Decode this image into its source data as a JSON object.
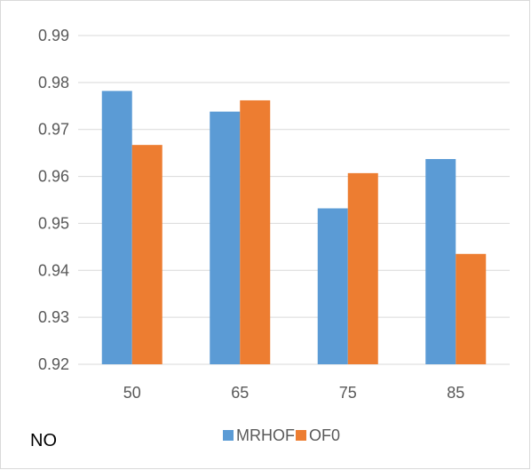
{
  "chart_data": {
    "type": "bar",
    "categories": [
      "50",
      "65",
      "75",
      "85"
    ],
    "series": [
      {
        "name": "MRHOF",
        "values": [
          0.9782,
          0.9738,
          0.9532,
          0.9637
        ],
        "color": "#5b9bd5"
      },
      {
        "name": "OF0",
        "values": [
          0.9667,
          0.9762,
          0.9607,
          0.9435
        ],
        "color": "#ed7d31"
      }
    ],
    "ylim": [
      0.92,
      0.99
    ],
    "yticks": [
      "0.92",
      "0.93",
      "0.94",
      "0.95",
      "0.96",
      "0.97",
      "0.98",
      "0.99"
    ],
    "grid": true,
    "legend_position": "bottom",
    "gridline_color": "#d9d9d9"
  },
  "annotation": {
    "text": "NO"
  }
}
